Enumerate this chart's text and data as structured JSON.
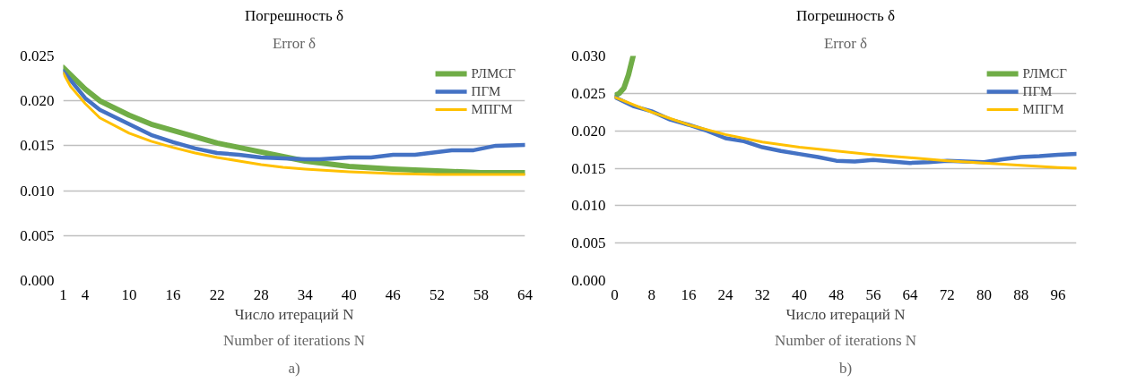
{
  "chart_data": [
    {
      "type": "line",
      "title": "Погрешность δ",
      "subtitle": "Error δ",
      "xlabel": "Число итераций N",
      "annotations": [
        "Number of iterations N",
        "a)"
      ],
      "xlim": [
        1,
        64
      ],
      "xticks": [
        1,
        4,
        10,
        16,
        22,
        28,
        34,
        40,
        46,
        52,
        58,
        64
      ],
      "ylim": [
        0,
        0.025
      ],
      "yticks": [
        {
          "value": 0,
          "label": "0.000"
        },
        {
          "value": 0.005,
          "label": "0.005"
        },
        {
          "value": 0.01,
          "label": "0.010"
        },
        {
          "value": 0.015,
          "label": "0.015"
        },
        {
          "value": 0.02,
          "label": "0.020"
        },
        {
          "value": 0.025,
          "label": "0.025"
        }
      ],
      "grid": "y",
      "legend": "top right",
      "line_style": "solid",
      "series": [
        {
          "name": "РЛМСГ",
          "color": "#70ad47",
          "x": [
            1,
            4,
            6,
            10,
            13,
            16,
            19,
            22,
            25,
            28,
            31,
            34,
            37,
            40,
            46,
            52,
            58,
            64
          ],
          "values": [
            0.0237,
            0.0213,
            0.02,
            0.0184,
            0.0174,
            0.0167,
            0.016,
            0.0153,
            0.0148,
            0.0143,
            0.0138,
            0.0133,
            0.013,
            0.0127,
            0.0124,
            0.0122,
            0.012,
            0.012
          ]
        },
        {
          "name": "ПГМ",
          "color": "#4472c4",
          "x": [
            1,
            4,
            6,
            10,
            13,
            16,
            19,
            22,
            25,
            28,
            31,
            34,
            36,
            40,
            43,
            46,
            49,
            52,
            54,
            57,
            60,
            64
          ],
          "values": [
            0.0233,
            0.0203,
            0.019,
            0.0174,
            0.0162,
            0.0154,
            0.0147,
            0.0142,
            0.014,
            0.0137,
            0.0136,
            0.0135,
            0.0135,
            0.0137,
            0.0137,
            0.014,
            0.014,
            0.0143,
            0.0145,
            0.0145,
            0.015,
            0.0151
          ]
        },
        {
          "name": "МПГМ",
          "color": "#ffc000",
          "x": [
            1,
            2,
            4,
            6,
            10,
            13,
            16,
            19,
            22,
            25,
            28,
            31,
            34,
            40,
            46,
            52,
            58,
            64
          ],
          "values": [
            0.0231,
            0.0216,
            0.0197,
            0.0181,
            0.0164,
            0.0155,
            0.0148,
            0.0142,
            0.0137,
            0.0133,
            0.0129,
            0.0126,
            0.0124,
            0.0121,
            0.0119,
            0.0118,
            0.0118,
            0.0118
          ]
        }
      ]
    },
    {
      "type": "line",
      "title": "Погрешность δ",
      "subtitle": "Error δ",
      "xlabel": "Число итераций N",
      "annotations": [
        "Number of iterations N",
        "b)"
      ],
      "xlim": [
        0,
        100
      ],
      "xticks": [
        0,
        8,
        16,
        24,
        32,
        40,
        48,
        56,
        64,
        72,
        80,
        88,
        96
      ],
      "ylim": [
        0,
        0.03
      ],
      "yticks": [
        {
          "value": 0,
          "label": "0.000"
        },
        {
          "value": 0.005,
          "label": "0.005"
        },
        {
          "value": 0.01,
          "label": "0.010"
        },
        {
          "value": 0.015,
          "label": "0.015"
        },
        {
          "value": 0.02,
          "label": "0.020"
        },
        {
          "value": 0.025,
          "label": "0.025"
        },
        {
          "value": 0.03,
          "label": "0.030"
        }
      ],
      "grid": "y",
      "legend": "top right",
      "line_style": "solid",
      "series": [
        {
          "name": "РЛМСГ",
          "color": "#70ad47",
          "x": [
            0,
            1,
            2,
            3,
            4
          ],
          "values": [
            0.0247,
            0.025,
            0.0257,
            0.0275,
            0.03
          ]
        },
        {
          "name": "ПГМ",
          "color": "#4472c4",
          "x": [
            0,
            4,
            8,
            12,
            16,
            20,
            24,
            28,
            32,
            36,
            40,
            44,
            48,
            52,
            56,
            60,
            64,
            68,
            72,
            76,
            80,
            84,
            88,
            92,
            96,
            100
          ],
          "values": [
            0.0245,
            0.0233,
            0.0226,
            0.0215,
            0.0208,
            0.02,
            0.019,
            0.0186,
            0.0178,
            0.0173,
            0.0169,
            0.0165,
            0.016,
            0.0159,
            0.0161,
            0.0159,
            0.0157,
            0.0158,
            0.016,
            0.0159,
            0.0158,
            0.0162,
            0.0165,
            0.0166,
            0.0168,
            0.0169
          ]
        },
        {
          "name": "МПГМ",
          "color": "#ffc000",
          "x": [
            0,
            8,
            16,
            24,
            32,
            40,
            48,
            56,
            64,
            72,
            80,
            88,
            96,
            100
          ],
          "values": [
            0.0245,
            0.0225,
            0.0208,
            0.0195,
            0.0185,
            0.0178,
            0.0173,
            0.0168,
            0.0164,
            0.016,
            0.0157,
            0.0154,
            0.0151,
            0.015
          ]
        }
      ]
    }
  ]
}
